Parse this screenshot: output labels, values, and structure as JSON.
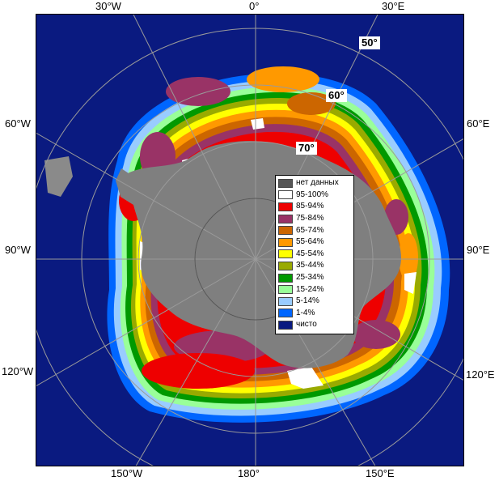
{
  "map": {
    "longitude_labels": {
      "top_left": "30°W",
      "top_center": "0°",
      "top_right": "30°E",
      "left_upper": "60°W",
      "right_upper": "60°E",
      "left_middle": "90°W",
      "right_middle": "90°E",
      "left_lower": "120°W",
      "right_lower": "120°E",
      "bottom_left": "150°W",
      "bottom_center": "180°",
      "bottom_right": "150°E"
    },
    "latitude_labels": {
      "lat50": "50°",
      "lat60": "60°",
      "lat70": "70°"
    },
    "colors": {
      "ocean": "#0a1a80",
      "land": "#7f7f7f",
      "grid": "#9a9a9a"
    }
  },
  "legend": {
    "items": [
      {
        "label": "нет данных",
        "color": "#555555"
      },
      {
        "label": "95-100%",
        "color": "#ffffff"
      },
      {
        "label": "85-94%",
        "color": "#ee0000"
      },
      {
        "label": "75-84%",
        "color": "#993366"
      },
      {
        "label": "65-74%",
        "color": "#cc6600"
      },
      {
        "label": "55-64%",
        "color": "#ff9900"
      },
      {
        "label": "45-54%",
        "color": "#ffff00"
      },
      {
        "label": "35-44%",
        "color": "#99aa00"
      },
      {
        "label": "25-34%",
        "color": "#009900"
      },
      {
        "label": "15-24%",
        "color": "#99ff99"
      },
      {
        "label": "5-14%",
        "color": "#99ccff"
      },
      {
        "label": "1-4%",
        "color": "#0066ff"
      },
      {
        "label": "чисто",
        "color": "#0a1a80"
      }
    ]
  }
}
